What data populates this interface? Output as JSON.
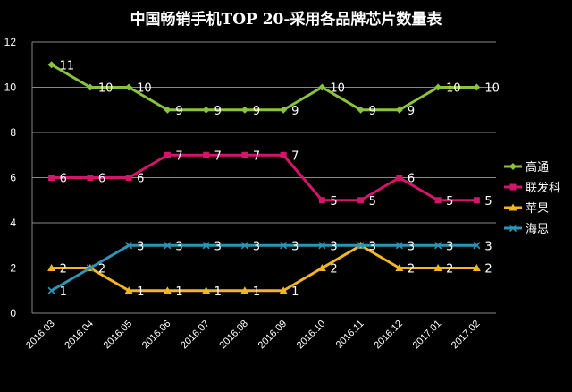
{
  "chart_data": {
    "type": "line",
    "title": "中国畅销手机TOP 20-采用各品牌芯片数量表",
    "categories": [
      "2016.03",
      "2016.04",
      "2016.05",
      "2016.06",
      "2016.07",
      "2016.08",
      "2016.09",
      "2016.10",
      "2016.11",
      "2016.12",
      "2017.01",
      "2017.02"
    ],
    "ylim": [
      0,
      12
    ],
    "yticks": [
      0,
      2,
      4,
      6,
      8,
      10,
      12
    ],
    "grid": true,
    "legend_position": "right",
    "series": [
      {
        "name": "高通",
        "values": [
          11,
          10,
          10,
          9,
          9,
          9,
          9,
          10,
          9,
          9,
          10,
          10
        ],
        "color": "#8ac43f",
        "marker": "diamond"
      },
      {
        "name": "联发科",
        "values": [
          6,
          6,
          6,
          7,
          7,
          7,
          7,
          5,
          5,
          6,
          5,
          5
        ],
        "color": "#d4166a",
        "marker": "square"
      },
      {
        "name": "苹果",
        "values": [
          2,
          2,
          1,
          1,
          1,
          1,
          1,
          2,
          3,
          2,
          2,
          2
        ],
        "color": "#f3b523",
        "marker": "triangle"
      },
      {
        "name": "海思",
        "values": [
          1,
          2,
          3,
          3,
          3,
          3,
          3,
          3,
          3,
          3,
          3,
          3
        ],
        "color": "#2c95b5",
        "marker": "cross"
      }
    ],
    "data_labels": {
      "高通": [
        "11",
        "10",
        "10",
        "9",
        "9",
        "9",
        "9",
        "10",
        "9",
        "9",
        "10",
        "10"
      ],
      "联发科": [
        "6",
        "6",
        "6",
        "7",
        "7",
        "7",
        "7",
        "5",
        "5",
        "6",
        "5",
        "5"
      ],
      "苹果": [
        "2",
        "2",
        "1",
        "1",
        "1",
        "1",
        "1",
        "2",
        "3",
        "2",
        "2",
        "2"
      ],
      "海思": [
        "1",
        "",
        "3",
        "3",
        "3",
        "3",
        "3",
        "3",
        "3",
        "3",
        "3",
        "3"
      ]
    }
  }
}
